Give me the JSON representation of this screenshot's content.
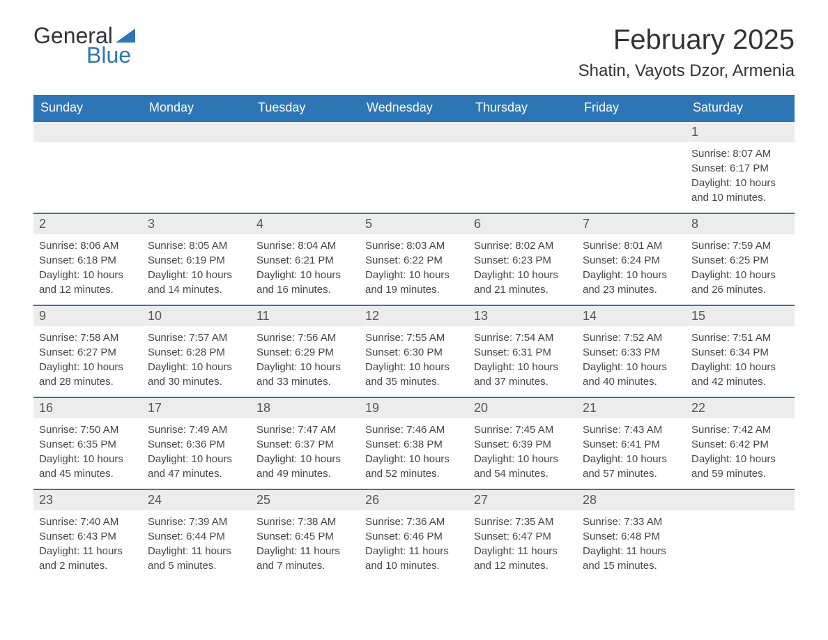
{
  "logo": {
    "word1": "General",
    "word2": "Blue",
    "accent": "#2e75b6"
  },
  "title": "February 2025",
  "location": "Shatin, Vayots Dzor, Armenia",
  "colors": {
    "header_bg": "#2e75b6",
    "header_text": "#ffffff",
    "day_bar_bg": "#ececec",
    "text": "#333333",
    "body_text": "#444444",
    "rule": "#2e75b6",
    "background": "#ffffff"
  },
  "days_of_week": [
    "Sunday",
    "Monday",
    "Tuesday",
    "Wednesday",
    "Thursday",
    "Friday",
    "Saturday"
  ],
  "weeks": [
    [
      {
        "blank": true
      },
      {
        "blank": true
      },
      {
        "blank": true
      },
      {
        "blank": true
      },
      {
        "blank": true
      },
      {
        "blank": true
      },
      {
        "n": "1",
        "sunrise": "Sunrise: 8:07 AM",
        "sunset": "Sunset: 6:17 PM",
        "day1": "Daylight: 10 hours",
        "day2": "and 10 minutes."
      }
    ],
    [
      {
        "n": "2",
        "sunrise": "Sunrise: 8:06 AM",
        "sunset": "Sunset: 6:18 PM",
        "day1": "Daylight: 10 hours",
        "day2": "and 12 minutes."
      },
      {
        "n": "3",
        "sunrise": "Sunrise: 8:05 AM",
        "sunset": "Sunset: 6:19 PM",
        "day1": "Daylight: 10 hours",
        "day2": "and 14 minutes."
      },
      {
        "n": "4",
        "sunrise": "Sunrise: 8:04 AM",
        "sunset": "Sunset: 6:21 PM",
        "day1": "Daylight: 10 hours",
        "day2": "and 16 minutes."
      },
      {
        "n": "5",
        "sunrise": "Sunrise: 8:03 AM",
        "sunset": "Sunset: 6:22 PM",
        "day1": "Daylight: 10 hours",
        "day2": "and 19 minutes."
      },
      {
        "n": "6",
        "sunrise": "Sunrise: 8:02 AM",
        "sunset": "Sunset: 6:23 PM",
        "day1": "Daylight: 10 hours",
        "day2": "and 21 minutes."
      },
      {
        "n": "7",
        "sunrise": "Sunrise: 8:01 AM",
        "sunset": "Sunset: 6:24 PM",
        "day1": "Daylight: 10 hours",
        "day2": "and 23 minutes."
      },
      {
        "n": "8",
        "sunrise": "Sunrise: 7:59 AM",
        "sunset": "Sunset: 6:25 PM",
        "day1": "Daylight: 10 hours",
        "day2": "and 26 minutes."
      }
    ],
    [
      {
        "n": "9",
        "sunrise": "Sunrise: 7:58 AM",
        "sunset": "Sunset: 6:27 PM",
        "day1": "Daylight: 10 hours",
        "day2": "and 28 minutes."
      },
      {
        "n": "10",
        "sunrise": "Sunrise: 7:57 AM",
        "sunset": "Sunset: 6:28 PM",
        "day1": "Daylight: 10 hours",
        "day2": "and 30 minutes."
      },
      {
        "n": "11",
        "sunrise": "Sunrise: 7:56 AM",
        "sunset": "Sunset: 6:29 PM",
        "day1": "Daylight: 10 hours",
        "day2": "and 33 minutes."
      },
      {
        "n": "12",
        "sunrise": "Sunrise: 7:55 AM",
        "sunset": "Sunset: 6:30 PM",
        "day1": "Daylight: 10 hours",
        "day2": "and 35 minutes."
      },
      {
        "n": "13",
        "sunrise": "Sunrise: 7:54 AM",
        "sunset": "Sunset: 6:31 PM",
        "day1": "Daylight: 10 hours",
        "day2": "and 37 minutes."
      },
      {
        "n": "14",
        "sunrise": "Sunrise: 7:52 AM",
        "sunset": "Sunset: 6:33 PM",
        "day1": "Daylight: 10 hours",
        "day2": "and 40 minutes."
      },
      {
        "n": "15",
        "sunrise": "Sunrise: 7:51 AM",
        "sunset": "Sunset: 6:34 PM",
        "day1": "Daylight: 10 hours",
        "day2": "and 42 minutes."
      }
    ],
    [
      {
        "n": "16",
        "sunrise": "Sunrise: 7:50 AM",
        "sunset": "Sunset: 6:35 PM",
        "day1": "Daylight: 10 hours",
        "day2": "and 45 minutes."
      },
      {
        "n": "17",
        "sunrise": "Sunrise: 7:49 AM",
        "sunset": "Sunset: 6:36 PM",
        "day1": "Daylight: 10 hours",
        "day2": "and 47 minutes."
      },
      {
        "n": "18",
        "sunrise": "Sunrise: 7:47 AM",
        "sunset": "Sunset: 6:37 PM",
        "day1": "Daylight: 10 hours",
        "day2": "and 49 minutes."
      },
      {
        "n": "19",
        "sunrise": "Sunrise: 7:46 AM",
        "sunset": "Sunset: 6:38 PM",
        "day1": "Daylight: 10 hours",
        "day2": "and 52 minutes."
      },
      {
        "n": "20",
        "sunrise": "Sunrise: 7:45 AM",
        "sunset": "Sunset: 6:39 PM",
        "day1": "Daylight: 10 hours",
        "day2": "and 54 minutes."
      },
      {
        "n": "21",
        "sunrise": "Sunrise: 7:43 AM",
        "sunset": "Sunset: 6:41 PM",
        "day1": "Daylight: 10 hours",
        "day2": "and 57 minutes."
      },
      {
        "n": "22",
        "sunrise": "Sunrise: 7:42 AM",
        "sunset": "Sunset: 6:42 PM",
        "day1": "Daylight: 10 hours",
        "day2": "and 59 minutes."
      }
    ],
    [
      {
        "n": "23",
        "sunrise": "Sunrise: 7:40 AM",
        "sunset": "Sunset: 6:43 PM",
        "day1": "Daylight: 11 hours",
        "day2": "and 2 minutes."
      },
      {
        "n": "24",
        "sunrise": "Sunrise: 7:39 AM",
        "sunset": "Sunset: 6:44 PM",
        "day1": "Daylight: 11 hours",
        "day2": "and 5 minutes."
      },
      {
        "n": "25",
        "sunrise": "Sunrise: 7:38 AM",
        "sunset": "Sunset: 6:45 PM",
        "day1": "Daylight: 11 hours",
        "day2": "and 7 minutes."
      },
      {
        "n": "26",
        "sunrise": "Sunrise: 7:36 AM",
        "sunset": "Sunset: 6:46 PM",
        "day1": "Daylight: 11 hours",
        "day2": "and 10 minutes."
      },
      {
        "n": "27",
        "sunrise": "Sunrise: 7:35 AM",
        "sunset": "Sunset: 6:47 PM",
        "day1": "Daylight: 11 hours",
        "day2": "and 12 minutes."
      },
      {
        "n": "28",
        "sunrise": "Sunrise: 7:33 AM",
        "sunset": "Sunset: 6:48 PM",
        "day1": "Daylight: 11 hours",
        "day2": "and 15 minutes."
      },
      {
        "blank": true
      }
    ]
  ]
}
